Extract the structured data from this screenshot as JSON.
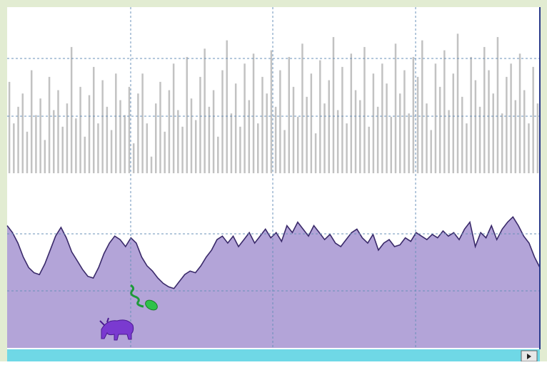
{
  "chart_data": [
    {
      "type": "bar",
      "color": "#c2c2c2",
      "ylim": [
        0,
        100
      ],
      "values": [
        55,
        30,
        40,
        48,
        25,
        62,
        35,
        45,
        20,
        58,
        38,
        50,
        28,
        42,
        76,
        33,
        52,
        22,
        47,
        64,
        30,
        56,
        40,
        26,
        60,
        44,
        35,
        52,
        18,
        48,
        60,
        30,
        10,
        42,
        55,
        25,
        50,
        66,
        38,
        28,
        70,
        45,
        32,
        58,
        75,
        40,
        50,
        22,
        62,
        80,
        36,
        54,
        28,
        66,
        44,
        72,
        30,
        58,
        48,
        74,
        40,
        62,
        26,
        70,
        52,
        34,
        78,
        46,
        60,
        24,
        68,
        42,
        56,
        82,
        38,
        64,
        30,
        72,
        50,
        44,
        76,
        28,
        60,
        40,
        66,
        54,
        34,
        78,
        48,
        62,
        36,
        70,
        58,
        80,
        42,
        26,
        66,
        52,
        74,
        38,
        60,
        84,
        46,
        30,
        70,
        56,
        40,
        76,
        62,
        48,
        82,
        36,
        58,
        66,
        44,
        72,
        50,
        30,
        64,
        42
      ]
    },
    {
      "type": "area",
      "color": "#b3a4d8",
      "line_color": "#3a2a6a",
      "ylim": [
        0,
        100
      ],
      "values": [
        70,
        66,
        60,
        52,
        46,
        43,
        42,
        48,
        56,
        64,
        69,
        63,
        55,
        50,
        45,
        41,
        40,
        46,
        54,
        60,
        64,
        62,
        58,
        63,
        60,
        52,
        47,
        44,
        40,
        37,
        35,
        34,
        38,
        42,
        44,
        43,
        47,
        52,
        56,
        62,
        64,
        60,
        64,
        58,
        62,
        66,
        60,
        64,
        68,
        63,
        66,
        61,
        70,
        66,
        72,
        68,
        64,
        70,
        66,
        62,
        65,
        60,
        58,
        62,
        66,
        68,
        63,
        60,
        65,
        56,
        60,
        62,
        58,
        59,
        63,
        61,
        66,
        64,
        62,
        65,
        63,
        67,
        64,
        66,
        62,
        68,
        72,
        58,
        66,
        63,
        70,
        62,
        68,
        72,
        75,
        70,
        64,
        60,
        52,
        46
      ]
    }
  ]
}
